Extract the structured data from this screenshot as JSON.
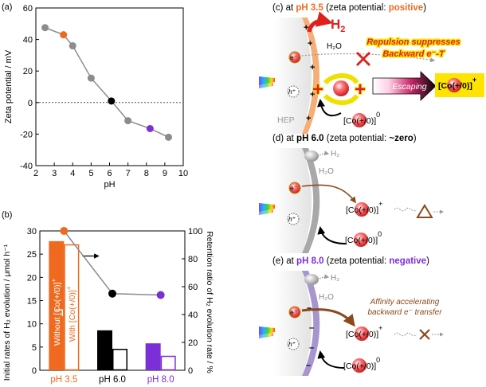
{
  "panel_labels": {
    "a": "(a)",
    "b": "(b)"
  },
  "panel_c": {
    "prefix": "(c) at ",
    "ph": "pH 3.5",
    "mid": " (zeta potential: ",
    "state": "positive",
    "suffix": ")",
    "h2_main": "H",
    "h2_sub": "2",
    "h2o": "H₂O",
    "electron": "e⁻",
    "hole": "h⁺",
    "hep": "HEP",
    "repulsion_line1": "Repulsion suppresses",
    "repulsion_line2": "Backward e⁻-T",
    "escaping": "Escaping",
    "co_label": "[Co(+/0)]",
    "co_sup_plus": "+",
    "co_sup_zero": "0",
    "plus": "+"
  },
  "panel_d": {
    "prefix": "(d) at ",
    "ph": "pH 6.0",
    "mid": " (zeta potential: ",
    "state": "~zero",
    "suffix": ")",
    "h2": "H₂",
    "h2o": "H₂O",
    "electron": "e⁻",
    "hole": "h⁺",
    "co_label": "[Co(+/0)]",
    "co_sup_plus": "+",
    "co_sup_zero": "0"
  },
  "panel_e": {
    "prefix": "(e) at ",
    "ph": "pH 8.0",
    "mid": " (zeta potential: ",
    "state": "negative",
    "suffix": ")",
    "h2": "H₂",
    "h2o": "H₂O",
    "electron": "e⁻",
    "hole": "h⁺",
    "affinity_line1": "Affinity accelerating",
    "affinity_line2": "backward e⁻ transfer",
    "co_label": "[Co(+/0)]",
    "co_sup_plus": "+",
    "co_sup_zero": "0",
    "minus": "–"
  },
  "colors": {
    "orange": "#ef6a1f",
    "purple": "#7b2fd6",
    "red": "#e0201b",
    "brown": "#8a4a1c",
    "gray": "#8c8c8c",
    "yellow": "#ffe400"
  },
  "chart_data": [
    {
      "type": "scatter",
      "panel": "a",
      "title": "",
      "xlabel": "pH",
      "ylabel": "Zeta potential / mV",
      "xlim": [
        2,
        10
      ],
      "ylim": [
        -40,
        60
      ],
      "xticks": [
        "2",
        "3",
        "4",
        "5",
        "6",
        "7",
        "8",
        "9",
        "10"
      ],
      "yticks": [
        "60",
        "40",
        "20",
        "0",
        "-20",
        "-40"
      ],
      "x": [
        2.5,
        3.5,
        4.0,
        5.0,
        6.1,
        7.0,
        8.2,
        9.2
      ],
      "y": [
        47.5,
        43.0,
        36.0,
        15.5,
        1.0,
        -11.5,
        -16.5,
        -22.0
      ],
      "highlighted": [
        {
          "x": 3.5,
          "color": "orange"
        },
        {
          "x": 6.1,
          "color": "black"
        },
        {
          "x": 8.2,
          "color": "purple"
        }
      ],
      "zero_line": "dotted"
    },
    {
      "type": "bar",
      "panel": "b",
      "categories": [
        "pH 3.5",
        "pH 6.0",
        "pH 8.0"
      ],
      "category_colors": [
        "#ef6a1f",
        "#000000",
        "#7b2fd6"
      ],
      "series": [
        {
          "name": "Without [Co(+/0)]⁺",
          "name_parts": [
            "Without ",
            "[Co(+/0)]",
            "+"
          ],
          "style": "filled",
          "values": [
            27.8,
            8.6,
            5.8
          ]
        },
        {
          "name": "With [Co(+/0)]⁺",
          "name_parts": [
            "With ",
            "[Co(+/0)]",
            "+"
          ],
          "style": "outline",
          "values": [
            27.0,
            4.5,
            3.0
          ]
        }
      ],
      "ylabel_left": "Initial rates of H₂ evolution / μmol h⁻¹",
      "ylim_left": [
        0,
        30
      ],
      "yticks_left": [
        "0",
        "5",
        "10",
        "15",
        "20",
        "25",
        "30"
      ],
      "ylabel_right": "Retention ratio of H₂ evolution rate / %",
      "ylim_right": [
        0,
        100
      ],
      "yticks_right": [
        "0",
        "20",
        "40",
        "60",
        "80",
        "100"
      ],
      "retention": [
        100,
        55,
        54
      ]
    }
  ]
}
